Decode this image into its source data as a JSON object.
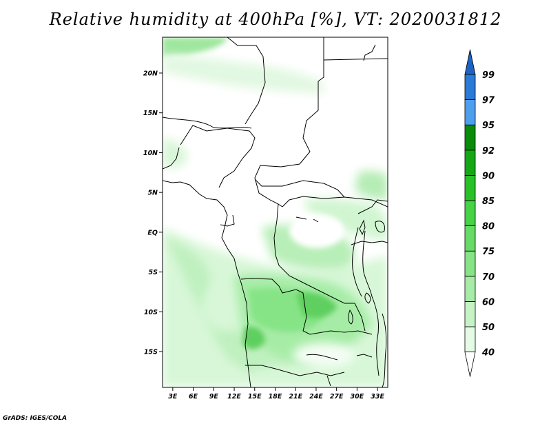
{
  "title": "Relative humidity at 400hPa [%], VT: 2020031812",
  "credit": "GrADS: IGES/COLA",
  "map": {
    "lat_labels": [
      "20N",
      "15N",
      "10N",
      "5N",
      "EQ",
      "5S",
      "10S",
      "15S"
    ],
    "lon_labels": [
      "3E",
      "6E",
      "9E",
      "12E",
      "15E",
      "18E",
      "21E",
      "24E",
      "27E",
      "30E",
      "33E"
    ],
    "lat_values": [
      20,
      15,
      10,
      5,
      0,
      -5,
      -10,
      -15
    ],
    "lon_values": [
      3,
      6,
      9,
      12,
      15,
      18,
      21,
      24,
      27,
      30,
      33
    ],
    "extent": {
      "lon_min": 1.5,
      "lon_max": 34.5,
      "lat_min": -19.5,
      "lat_max": 24.5
    }
  },
  "colorbar": {
    "labels": [
      "40",
      "50",
      "60",
      "70",
      "75",
      "80",
      "85",
      "90",
      "92",
      "95",
      "97",
      "99"
    ],
    "colors": [
      "#ffffff",
      "#e6fbe6",
      "#c6f3c6",
      "#a6eca6",
      "#86e486",
      "#66dc66",
      "#46d346",
      "#28c128",
      "#16a716",
      "#0a8c0a",
      "#4ea0ee",
      "#2a7ad8",
      "#1d62c4"
    ]
  }
}
